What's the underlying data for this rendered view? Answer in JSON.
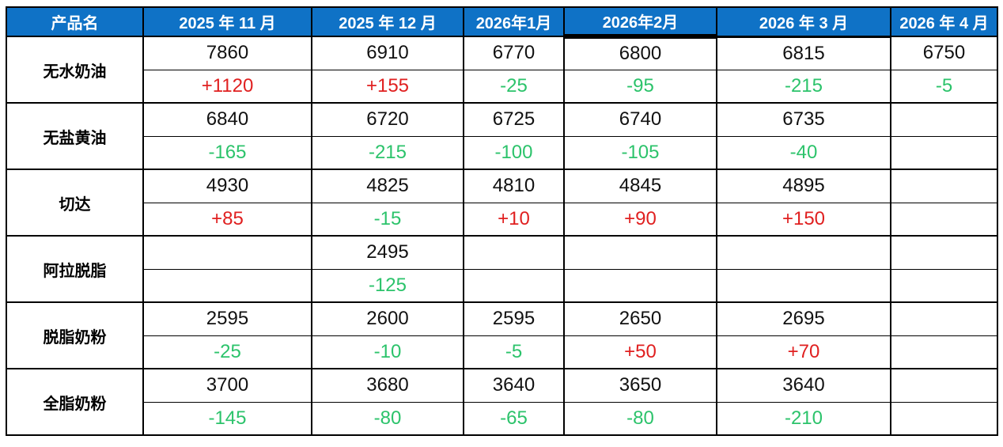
{
  "chart_data": {
    "type": "table",
    "columns": [
      "产品名",
      "2025 年 11 月",
      "2025 年 12 月",
      "2026年1月",
      "2026年2月",
      "2026 年 3 月",
      "2026 年 4 月"
    ],
    "products": [
      {
        "name": "无水奶油",
        "prices": [
          "7860",
          "6910",
          "6770",
          "6800",
          "6815",
          "6750"
        ],
        "changes": [
          "+1120",
          "+155",
          "-25",
          "-95",
          "-215",
          "-5"
        ]
      },
      {
        "name": "无盐黄油",
        "prices": [
          "6840",
          "6720",
          "6725",
          "6740",
          "6735",
          ""
        ],
        "changes": [
          "-165",
          "-215",
          "-100",
          "-105",
          "-40",
          ""
        ]
      },
      {
        "name": "切达",
        "prices": [
          "4930",
          "4825",
          "4810",
          "4845",
          "4895",
          ""
        ],
        "changes": [
          "+85",
          "-15",
          "+10",
          "+90",
          "+150",
          ""
        ]
      },
      {
        "name": "阿拉脱脂",
        "prices": [
          "",
          "2495",
          "",
          "",
          "",
          ""
        ],
        "changes": [
          "",
          "-125",
          "",
          "",
          "",
          ""
        ]
      },
      {
        "name": "脱脂奶粉",
        "prices": [
          "2595",
          "2600",
          "2595",
          "2650",
          "2695",
          ""
        ],
        "changes": [
          "-25",
          "-10",
          "-5",
          "+50",
          "+70",
          ""
        ]
      },
      {
        "name": "全脂奶粉",
        "prices": [
          "3700",
          "3680",
          "3640",
          "3650",
          "3640",
          ""
        ],
        "changes": [
          "-145",
          "-80",
          "-65",
          "-80",
          "-210",
          ""
        ]
      }
    ]
  },
  "colors": {
    "header_bg": "#0F72C6",
    "header_text": "#FFFFFF",
    "increase_red": "#E02020",
    "decrease_green": "#2CC36B",
    "border_black": "#000000",
    "cell_bg": "#FFFFFF"
  }
}
